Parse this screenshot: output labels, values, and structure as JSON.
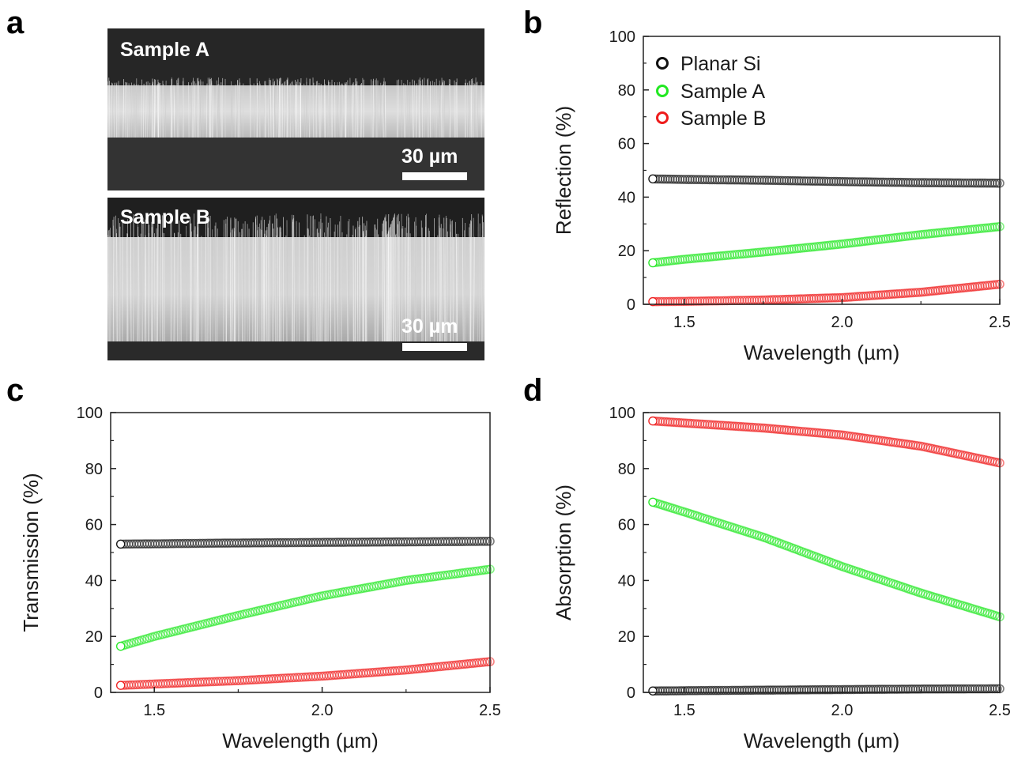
{
  "panels": {
    "a": {
      "label": "a",
      "images": [
        {
          "label": "Sample A",
          "scale_bar": "30 µm"
        },
        {
          "label": "Sample B",
          "scale_bar": "30 µm"
        }
      ]
    },
    "b": {
      "label": "b"
    },
    "c": {
      "label": "c"
    },
    "d": {
      "label": "d"
    }
  },
  "colors": {
    "planar": "#111111",
    "sampleA": "#22e822",
    "sampleB": "#ee1c1c"
  },
  "legend": [
    "Planar Si",
    "Sample A",
    "Sample B"
  ],
  "chart_data": [
    {
      "panel": "b",
      "type": "scatter",
      "xlabel": "Wavelength (µm)",
      "ylabel": "Reflection (%)",
      "xlim": [
        1.37,
        2.5
      ],
      "ylim": [
        0,
        100
      ],
      "xticks": [
        "1.5",
        "2.0",
        "2.5"
      ],
      "yticks": [
        "0",
        "20",
        "40",
        "60",
        "80",
        "100"
      ],
      "legend_position": "top-left",
      "series": [
        {
          "name": "Planar Si",
          "x": [
            1.4,
            1.5,
            1.75,
            2.0,
            2.25,
            2.5
          ],
          "y": [
            46.8,
            46.6,
            46.3,
            45.8,
            45.4,
            45.2
          ]
        },
        {
          "name": "Sample A",
          "x": [
            1.4,
            1.5,
            1.75,
            2.0,
            2.25,
            2.5
          ],
          "y": [
            15.5,
            16.8,
            19.5,
            22.5,
            26.0,
            29.0
          ]
        },
        {
          "name": "Sample B",
          "x": [
            1.4,
            1.5,
            1.75,
            2.0,
            2.25,
            2.5
          ],
          "y": [
            1.0,
            1.1,
            1.6,
            2.5,
            4.5,
            7.5
          ]
        }
      ]
    },
    {
      "panel": "c",
      "type": "scatter",
      "xlabel": "Wavelength (µm)",
      "ylabel": "Transmission (%)",
      "xlim": [
        1.37,
        2.5
      ],
      "ylim": [
        0,
        100
      ],
      "xticks": [
        "1.5",
        "2.0",
        "2.5"
      ],
      "yticks": [
        "0",
        "20",
        "40",
        "60",
        "80",
        "100"
      ],
      "series": [
        {
          "name": "Planar Si",
          "x": [
            1.4,
            1.5,
            1.75,
            2.0,
            2.25,
            2.5
          ],
          "y": [
            53.0,
            53.1,
            53.4,
            53.6,
            53.8,
            54.0
          ]
        },
        {
          "name": "Sample A",
          "x": [
            1.4,
            1.5,
            1.75,
            2.0,
            2.25,
            2.5
          ],
          "y": [
            16.5,
            20.0,
            27.5,
            34.5,
            40.0,
            44.0
          ]
        },
        {
          "name": "Sample B",
          "x": [
            1.4,
            1.5,
            1.75,
            2.0,
            2.25,
            2.5
          ],
          "y": [
            2.5,
            3.0,
            4.2,
            5.8,
            8.0,
            11.0
          ]
        }
      ]
    },
    {
      "panel": "d",
      "type": "scatter",
      "xlabel": "Wavelength (µm)",
      "ylabel": "Absorption (%)",
      "xlim": [
        1.37,
        2.5
      ],
      "ylim": [
        0,
        100
      ],
      "xticks": [
        "1.5",
        "2.0",
        "2.5"
      ],
      "yticks": [
        "0",
        "20",
        "40",
        "60",
        "80",
        "100"
      ],
      "series": [
        {
          "name": "Planar Si",
          "x": [
            1.4,
            1.5,
            1.75,
            2.0,
            2.25,
            2.5
          ],
          "y": [
            0.5,
            0.6,
            0.8,
            1.0,
            1.2,
            1.3
          ]
        },
        {
          "name": "Sample A",
          "x": [
            1.4,
            1.5,
            1.75,
            2.0,
            2.25,
            2.5
          ],
          "y": [
            68.0,
            64.5,
            55.5,
            45.0,
            35.5,
            27.0
          ]
        },
        {
          "name": "Sample B",
          "x": [
            1.4,
            1.5,
            1.75,
            2.0,
            2.25,
            2.5
          ],
          "y": [
            97.0,
            96.3,
            94.5,
            92.0,
            88.0,
            82.0
          ]
        }
      ]
    }
  ]
}
